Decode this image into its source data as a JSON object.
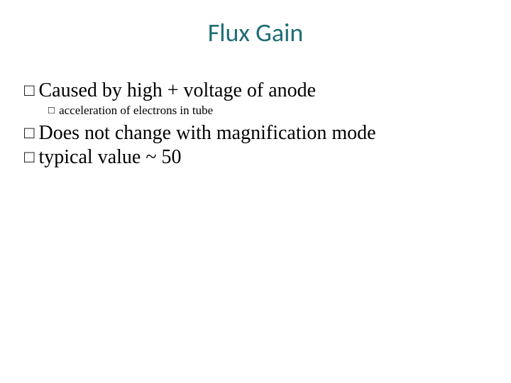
{
  "title": {
    "text": "Flux Gain",
    "color": "#1f6e74",
    "fontsize": 36,
    "fontweight": 400
  },
  "body": {
    "l1_fontsize": 28,
    "l1_color": "#000000",
    "l1_marker_size": 24,
    "l2_fontsize": 17,
    "l2_color": "#000000",
    "l2_marker_size": 15,
    "marker_glyph": "□",
    "items": [
      {
        "level": 1,
        "text": "Caused by high + voltage of anode"
      },
      {
        "level": 2,
        "text": "acceleration of electrons in tube"
      },
      {
        "level": 1,
        "text": "Does not change with magnification mode"
      },
      {
        "level": 1,
        "text": "typical value ~ 50"
      }
    ]
  }
}
